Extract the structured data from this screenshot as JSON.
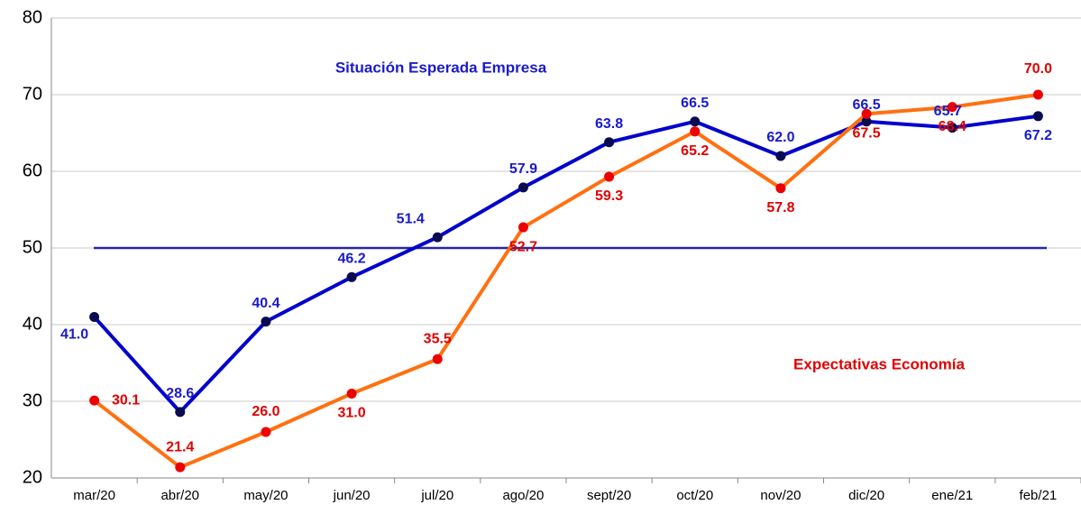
{
  "chart_data": {
    "type": "line",
    "categories": [
      "mar/20",
      "abr/20",
      "may/20",
      "jun/20",
      "jul/20",
      "ago/20",
      "sept/20",
      "oct/20",
      "nov/20",
      "dic/20",
      "ene/21",
      "feb/21"
    ],
    "series": [
      {
        "name": "Situación Esperada Empresa",
        "color": "#0000cc",
        "marker_color": "#0a0a50",
        "values": [
          41.0,
          28.6,
          40.4,
          46.2,
          51.4,
          57.9,
          63.8,
          66.5,
          62.0,
          66.5,
          65.7,
          67.2
        ],
        "value_labels": [
          "41.0",
          "28.6",
          "40.4",
          "46.2",
          "51.4",
          "57.9",
          "63.8",
          "66.5",
          "62.0",
          "66.5",
          "65.7",
          "67.2"
        ]
      },
      {
        "name": "Expectativas Economía",
        "color": "#ff7010",
        "marker_color": "#ee0000",
        "values": [
          30.1,
          21.4,
          26.0,
          31.0,
          35.5,
          52.7,
          59.3,
          65.2,
          57.8,
          67.5,
          68.4,
          70.0
        ],
        "value_labels": [
          "30.1",
          "21.4",
          "26.0",
          "31.0",
          "35.5",
          "52.7",
          "59.3",
          "65.2",
          "57.8",
          "67.5",
          "68.4",
          "70.0"
        ]
      }
    ],
    "reference_line": {
      "value": 50,
      "color": "#2828a0"
    },
    "ylim": [
      20,
      80
    ],
    "yticks": [
      20,
      30,
      40,
      50,
      60,
      70,
      80
    ],
    "grid": true
  }
}
